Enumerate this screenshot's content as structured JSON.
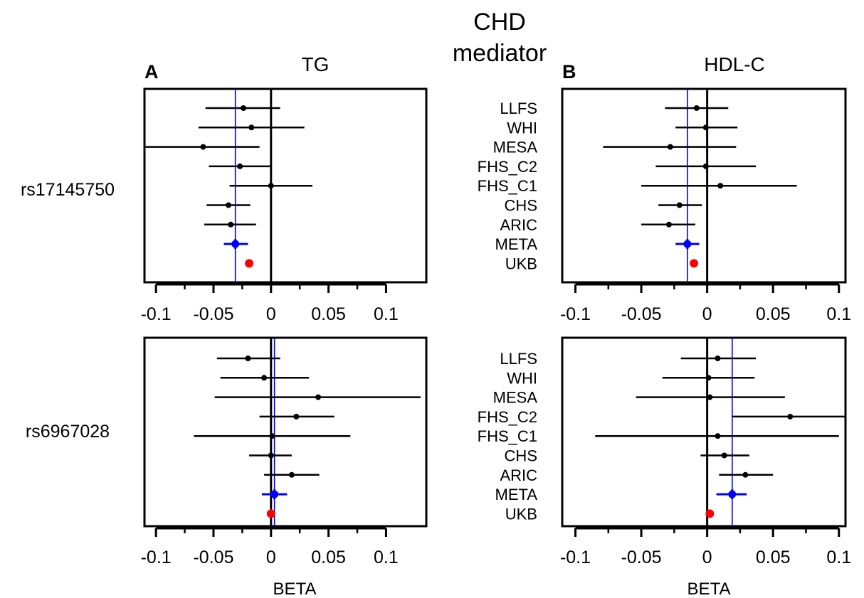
{
  "figure": {
    "title_line1": "CHD",
    "title_line2": "mediator",
    "panel_a_letter": "A",
    "panel_b_letter": "B",
    "col_a_title": "TG",
    "col_b_title": "HDL-C",
    "row_top_label": "rs17145750",
    "row_bottom_label": "rs6967028",
    "xlabel": "BETA"
  },
  "colors": {
    "study": "#000000",
    "meta": "#0000ff",
    "ukb": "#ff0000"
  },
  "chart_data": [
    {
      "type": "scatter",
      "subtype": "forest",
      "panel": "TG / rs17145750",
      "xlim": [
        -0.11,
        0.135
      ],
      "xticks": [
        -0.1,
        -0.05,
        0,
        0.05,
        0.1
      ],
      "tick_labels": [
        "-0.1",
        "-0.05",
        "0",
        "0.05",
        "0.1"
      ],
      "meta_line": -0.031,
      "studies": [
        {
          "name": "LLFS",
          "beta": -0.024,
          "lo": -0.057,
          "hi": 0.008
        },
        {
          "name": "WHI",
          "beta": -0.017,
          "lo": -0.063,
          "hi": 0.029
        },
        {
          "name": "MESA",
          "beta": -0.059,
          "lo": -0.109,
          "hi": -0.01
        },
        {
          "name": "FHS_C2",
          "beta": -0.027,
          "lo": -0.054,
          "hi": 0.0
        },
        {
          "name": "FHS_C1",
          "beta": 0.0,
          "lo": -0.036,
          "hi": 0.036
        },
        {
          "name": "CHS",
          "beta": -0.037,
          "lo": -0.056,
          "hi": -0.018
        },
        {
          "name": "ARIC",
          "beta": -0.035,
          "lo": -0.058,
          "hi": -0.013
        },
        {
          "name": "META",
          "beta": -0.031,
          "lo": -0.041,
          "hi": -0.02
        },
        {
          "name": "UKB",
          "beta": -0.019,
          "lo": null,
          "hi": null
        }
      ]
    },
    {
      "type": "scatter",
      "subtype": "forest",
      "panel": "HDL-C / rs17145750",
      "xlim": [
        -0.11,
        0.105
      ],
      "xticks": [
        -0.1,
        -0.05,
        0,
        0.05,
        0.1
      ],
      "tick_labels": [
        "-0.1",
        "-0.05",
        "0",
        "0.05",
        "0.1"
      ],
      "meta_line": -0.015,
      "studies": [
        {
          "name": "LLFS",
          "beta": -0.008,
          "lo": -0.032,
          "hi": 0.016
        },
        {
          "name": "WHI",
          "beta": -0.001,
          "lo": -0.024,
          "hi": 0.023
        },
        {
          "name": "MESA",
          "beta": -0.028,
          "lo": -0.079,
          "hi": 0.022
        },
        {
          "name": "FHS_C2",
          "beta": -0.001,
          "lo": -0.039,
          "hi": 0.037
        },
        {
          "name": "FHS_C1",
          "beta": 0.01,
          "lo": -0.05,
          "hi": 0.068
        },
        {
          "name": "CHS",
          "beta": -0.021,
          "lo": -0.037,
          "hi": -0.004
        },
        {
          "name": "ARIC",
          "beta": -0.029,
          "lo": -0.05,
          "hi": -0.009
        },
        {
          "name": "META",
          "beta": -0.015,
          "lo": -0.024,
          "hi": -0.006
        },
        {
          "name": "UKB",
          "beta": -0.01,
          "lo": null,
          "hi": null
        }
      ]
    },
    {
      "type": "scatter",
      "subtype": "forest",
      "panel": "TG / rs6967028",
      "xlim": [
        -0.11,
        0.135
      ],
      "xticks": [
        -0.1,
        -0.05,
        0,
        0.05,
        0.1
      ],
      "tick_labels": [
        "-0.1",
        "-0.05",
        "0",
        "0.05",
        "0.1"
      ],
      "meta_line": 0.003,
      "studies": [
        {
          "name": "LLFS",
          "beta": -0.02,
          "lo": -0.047,
          "hi": 0.008
        },
        {
          "name": "WHI",
          "beta": -0.006,
          "lo": -0.044,
          "hi": 0.033
        },
        {
          "name": "MESA",
          "beta": 0.041,
          "lo": -0.049,
          "hi": 0.13
        },
        {
          "name": "FHS_C2",
          "beta": 0.022,
          "lo": -0.01,
          "hi": 0.055
        },
        {
          "name": "FHS_C1",
          "beta": 0.001,
          "lo": -0.067,
          "hi": 0.069
        },
        {
          "name": "CHS",
          "beta": 0.0,
          "lo": -0.019,
          "hi": 0.018
        },
        {
          "name": "ARIC",
          "beta": 0.018,
          "lo": -0.006,
          "hi": 0.042
        },
        {
          "name": "META",
          "beta": 0.003,
          "lo": -0.008,
          "hi": 0.014
        },
        {
          "name": "UKB",
          "beta": 0.0,
          "lo": null,
          "hi": null
        }
      ]
    },
    {
      "type": "scatter",
      "subtype": "forest",
      "panel": "HDL-C / rs6967028",
      "xlim": [
        -0.11,
        0.105
      ],
      "xticks": [
        -0.1,
        -0.05,
        0,
        0.05,
        0.1
      ],
      "tick_labels": [
        "-0.1",
        "-0.05",
        "0",
        "0.05",
        "0.1"
      ],
      "meta_line": 0.019,
      "studies": [
        {
          "name": "LLFS",
          "beta": 0.008,
          "lo": -0.02,
          "hi": 0.037
        },
        {
          "name": "WHI",
          "beta": 0.001,
          "lo": -0.034,
          "hi": 0.036
        },
        {
          "name": "MESA",
          "beta": 0.002,
          "lo": -0.054,
          "hi": 0.059
        },
        {
          "name": "FHS_C2",
          "beta": 0.063,
          "lo": 0.019,
          "hi": 0.105
        },
        {
          "name": "FHS_C1",
          "beta": 0.008,
          "lo": -0.085,
          "hi": 0.1
        },
        {
          "name": "CHS",
          "beta": 0.013,
          "lo": -0.005,
          "hi": 0.032
        },
        {
          "name": "ARIC",
          "beta": 0.029,
          "lo": 0.009,
          "hi": 0.05
        },
        {
          "name": "META",
          "beta": 0.019,
          "lo": 0.007,
          "hi": 0.03
        },
        {
          "name": "UKB",
          "beta": 0.002,
          "lo": null,
          "hi": null
        }
      ]
    }
  ]
}
